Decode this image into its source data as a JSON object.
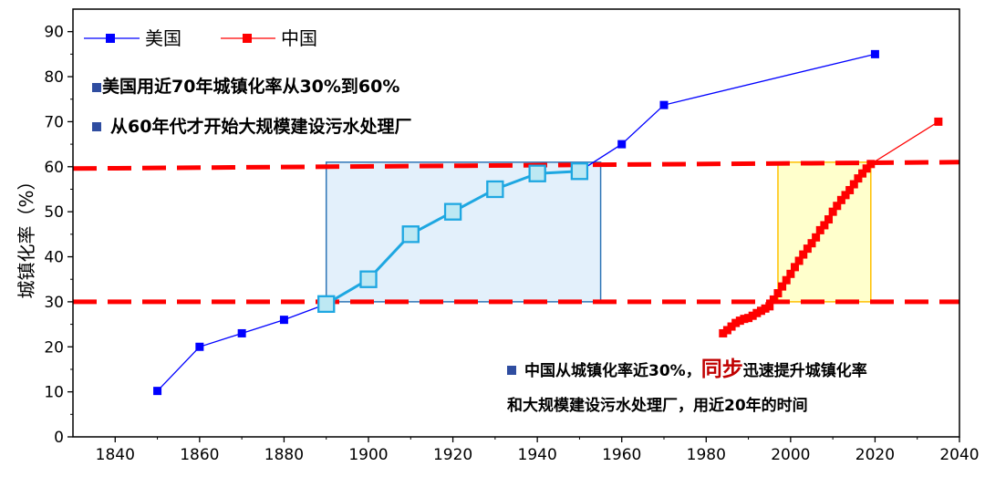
{
  "chart_data": {
    "type": "line",
    "title": "",
    "xlabel": "",
    "ylabel": "城镇化率（%）",
    "xlim": [
      1830,
      2040
    ],
    "ylim": [
      0,
      95
    ],
    "xticks": [
      1840,
      1860,
      1880,
      1900,
      1920,
      1940,
      1960,
      1980,
      2000,
      2020,
      2040
    ],
    "yticks": [
      0,
      10,
      20,
      30,
      40,
      50,
      60,
      70,
      80,
      90
    ],
    "series": [
      {
        "name": "美国",
        "color": "#0000ff",
        "x": [
          1850,
          1860,
          1870,
          1880,
          1890,
          1900,
          1910,
          1920,
          1930,
          1940,
          1950,
          1960,
          1970,
          2020
        ],
        "y": [
          10.2,
          20,
          23,
          26,
          29.5,
          35,
          45,
          50,
          55,
          58.5,
          59,
          65,
          73.7,
          85
        ]
      },
      {
        "name": "中国",
        "color": "#ff0000",
        "x": [
          1984,
          1985,
          1986,
          1987,
          1988,
          1989,
          1990,
          1991,
          1992,
          1993,
          1994,
          1995,
          1996,
          1997,
          1998,
          1999,
          2000,
          2001,
          2002,
          2003,
          2004,
          2005,
          2006,
          2007,
          2008,
          2009,
          2010,
          2011,
          2012,
          2013,
          2014,
          2015,
          2016,
          2017,
          2018,
          2019,
          2035
        ],
        "y": [
          23,
          23.7,
          24.5,
          25.3,
          25.8,
          26.2,
          26.4,
          26.9,
          27.5,
          28,
          28.5,
          29,
          30.5,
          31.9,
          33.4,
          34.8,
          36.2,
          37.7,
          39.1,
          40.5,
          41.8,
          43,
          44.3,
          45.9,
          47,
          48.3,
          50,
          51.3,
          52.6,
          53.7,
          54.8,
          56.1,
          57.4,
          58.5,
          59.6,
          60.6,
          70
        ]
      }
    ],
    "reference_lines": [
      30,
      60
    ],
    "highlight_regions": [
      {
        "name": "美国",
        "x": [
          1890,
          1955
        ],
        "y": [
          30,
          61
        ],
        "fill": "#e3f0fb",
        "stroke": "#2e75b6"
      },
      {
        "name": "中国",
        "x": [
          1997,
          2019
        ],
        "y": [
          30,
          61
        ],
        "fill": "#ffffcc",
        "stroke": "#ffc000"
      }
    ],
    "annotations": {
      "us_line1": "美国用近70年城镇化率从30%到60%",
      "us_line2": "从60年代才开始大规模建设污水处理厂",
      "cn_line1_a": "中国从城镇化率近30%，",
      "cn_line1_highlight": "同步",
      "cn_line1_b": "迅速提升城镇化率",
      "cn_line2": "和大规模建设污水处理厂，用近20年的时间"
    }
  }
}
